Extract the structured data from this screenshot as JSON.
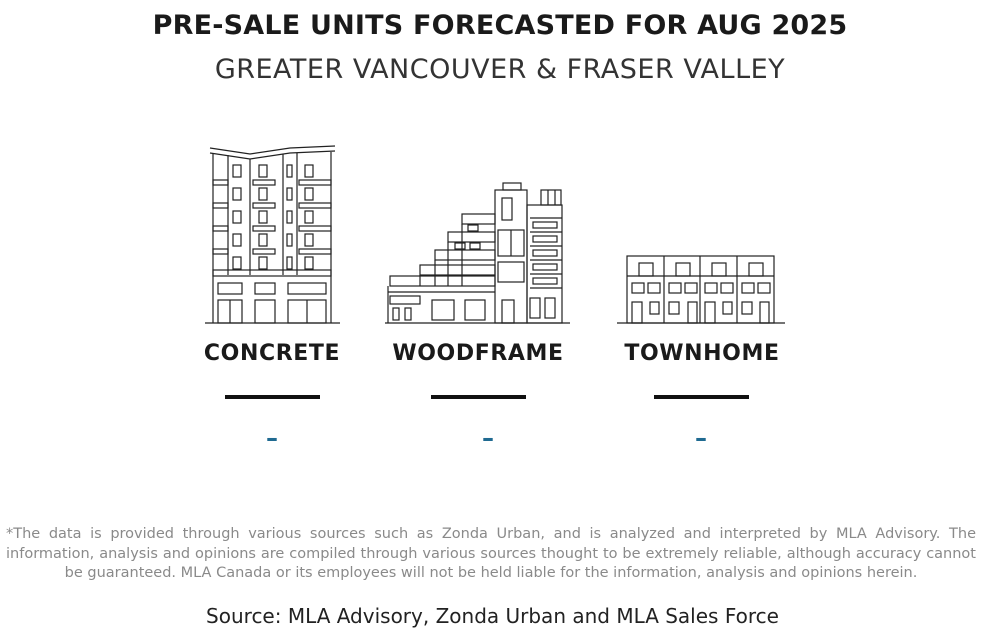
{
  "header": {
    "title": "PRE-SALE UNITS FORECASTED FOR AUG 2025",
    "subtitle": "GREATER VANCOUVER & FRASER VALLEY"
  },
  "categories": [
    {
      "label": "CONCRETE",
      "value": "–",
      "icon": "concrete-building-icon"
    },
    {
      "label": "WOODFRAME",
      "value": "–",
      "icon": "woodframe-building-icon"
    },
    {
      "label": "TOWNHOME",
      "value": "–",
      "icon": "townhome-building-icon"
    }
  ],
  "footer": {
    "disclaimer": "*The data is provided through various sources such as Zonda Urban, and is analyzed and interpreted by MLA Advisory. The information, analysis and opinions are compiled through various sources thought to be extremely reliable, although accuracy cannot be guaranteed. MLA Canada or its employees will not be held liable for the information, analysis and opinions herein.",
    "source": "Source: MLA Advisory, Zonda Urban and MLA Sales Force"
  },
  "colors": {
    "value_accent": "#1f6a91",
    "text_dark": "#1a1a1a",
    "disclaimer_gray": "#8a8a8a"
  }
}
